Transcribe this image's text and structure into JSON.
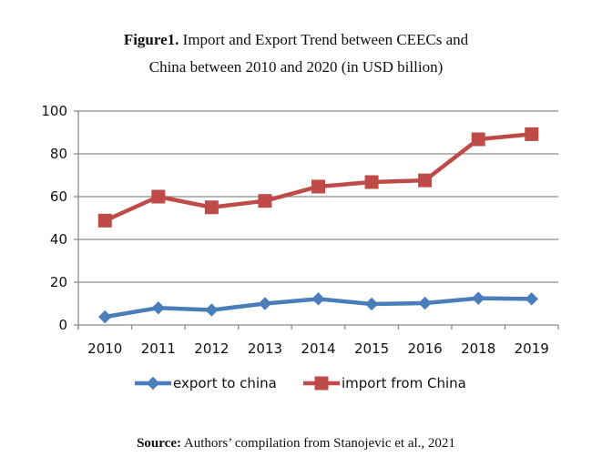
{
  "caption": {
    "prefix": "Figure1.",
    "line1": " Import and Export Trend between CEECs and",
    "line2": "China between 2010 and 2020 (in USD billion)"
  },
  "source": {
    "prefix": "Source:",
    "text": " Authors’ compilation from Stanojevic et al., 2021"
  },
  "chart_data": {
    "type": "line",
    "title": "Figure1. Import and Export Trend between CEECs and China between 2010 and 2020 (in USD billion)",
    "xlabel": "",
    "ylabel": "",
    "categories": [
      "2010",
      "2011",
      "2012",
      "2013",
      "2014",
      "2015",
      "2016",
      "2018",
      "2019"
    ],
    "ylim": [
      0,
      100
    ],
    "yticks": [
      0,
      20,
      40,
      60,
      80,
      100
    ],
    "grid": true,
    "legend": "bottom",
    "series": [
      {
        "name": "export to china",
        "color": "#4a7ebb",
        "marker": "diamond",
        "values": [
          3.8,
          8.0,
          7.0,
          10.0,
          12.2,
          9.8,
          10.2,
          12.5,
          12.2
        ]
      },
      {
        "name": "import from China",
        "color": "#be4b48",
        "marker": "square",
        "values": [
          48.8,
          60.0,
          55.0,
          58.0,
          64.7,
          66.8,
          67.6,
          86.8,
          89.2
        ]
      }
    ]
  }
}
